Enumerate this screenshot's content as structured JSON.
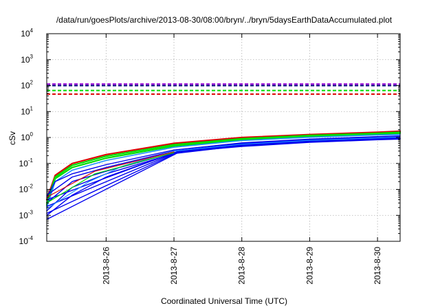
{
  "chart_data": {
    "type": "line",
    "title": "/data/run/goesPlots/archive/2013-08-30/08:00/bryn/../bryn/5daysEarthDataAccumulated.plot",
    "xlabel": "Coordinated Universal Time (UTC)",
    "ylabel": "cSv",
    "yscale": "log",
    "ylim": [
      0.0001,
      10000
    ],
    "xlim": [
      "2013-08-25 03:00",
      "2013-08-30 08:00"
    ],
    "x_ticks": [
      "2013-8-26",
      "2013-8-27",
      "2013-8-28",
      "2013-8-29",
      "2013-8-30"
    ],
    "y_ticks": [
      {
        "value": 0.0001,
        "base": "10",
        "exp": "-4"
      },
      {
        "value": 0.001,
        "base": "10",
        "exp": "-3"
      },
      {
        "value": 0.01,
        "base": "10",
        "exp": "-2"
      },
      {
        "value": 0.1,
        "base": "10",
        "exp": "-1"
      },
      {
        "value": 1,
        "base": "10",
        "exp": "0"
      },
      {
        "value": 10,
        "base": "10",
        "exp": "1"
      },
      {
        "value": 100,
        "base": "10",
        "exp": "2"
      },
      {
        "value": 1000,
        "base": "10",
        "exp": "3"
      },
      {
        "value": 10000,
        "base": "10",
        "exp": "4"
      }
    ],
    "grid": true,
    "colors": {
      "red": "#dd0000",
      "green": "#00dd00",
      "blue": "#0000ee",
      "lightblue": "#1e90ff",
      "purple": "#9400d3",
      "navy": "#00007a"
    },
    "threshold_lines": [
      {
        "y": 115,
        "color": "#9400d3"
      },
      {
        "y": 100,
        "color": "#00007a"
      },
      {
        "y": 65,
        "color": "#00dd00"
      },
      {
        "y": 47,
        "color": "#dd0000"
      }
    ],
    "series": [
      {
        "color": "#dd0000",
        "width": 2.2,
        "points": [
          [
            "2013-08-25 03:00",
            0.004
          ],
          [
            "2013-08-25 06:00",
            0.035
          ],
          [
            "2013-08-25 12:00",
            0.1
          ],
          [
            "2013-08-26 00:00",
            0.22
          ],
          [
            "2013-08-27 00:00",
            0.6
          ],
          [
            "2013-08-28 00:00",
            1.0
          ],
          [
            "2013-08-29 00:00",
            1.3
          ],
          [
            "2013-08-30 00:00",
            1.6
          ],
          [
            "2013-08-30 08:00",
            1.75
          ]
        ]
      },
      {
        "color": "#00dd00",
        "width": 2.2,
        "points": [
          [
            "2013-08-25 03:00",
            0.003
          ],
          [
            "2013-08-25 06:00",
            0.03
          ],
          [
            "2013-08-25 12:00",
            0.085
          ],
          [
            "2013-08-26 00:00",
            0.19
          ],
          [
            "2013-08-27 00:00",
            0.53
          ],
          [
            "2013-08-28 00:00",
            0.9
          ],
          [
            "2013-08-29 00:00",
            1.2
          ],
          [
            "2013-08-30 00:00",
            1.45
          ],
          [
            "2013-08-30 08:00",
            1.6
          ]
        ]
      },
      {
        "color": "#00dd00",
        "width": 2.2,
        "points": [
          [
            "2013-08-25 03:00",
            0.0025
          ],
          [
            "2013-08-25 06:00",
            0.026
          ],
          [
            "2013-08-25 12:00",
            0.07
          ],
          [
            "2013-08-26 00:00",
            0.16
          ],
          [
            "2013-08-27 00:00",
            0.47
          ],
          [
            "2013-08-28 00:00",
            0.82
          ],
          [
            "2013-08-29 00:00",
            1.1
          ],
          [
            "2013-08-30 00:00",
            1.35
          ],
          [
            "2013-08-30 08:00",
            1.45
          ]
        ]
      },
      {
        "color": "#1e90ff",
        "width": 1.6,
        "points": [
          [
            "2013-08-25 03:00",
            0.002
          ],
          [
            "2013-08-25 06:00",
            0.02
          ],
          [
            "2013-08-25 12:00",
            0.055
          ],
          [
            "2013-08-26 00:00",
            0.13
          ],
          [
            "2013-08-27 00:00",
            0.42
          ],
          [
            "2013-08-28 00:00",
            0.76
          ],
          [
            "2013-08-29 00:00",
            1.02
          ],
          [
            "2013-08-30 00:00",
            1.25
          ],
          [
            "2013-08-30 08:00",
            1.3
          ]
        ]
      },
      {
        "color": "#0000ee",
        "width": 1.4,
        "points": [
          [
            "2013-08-25 03:00",
            0.005
          ],
          [
            "2013-08-25 06:00",
            0.02
          ],
          [
            "2013-08-25 12:00",
            0.04
          ],
          [
            "2013-08-26 00:00",
            0.09
          ],
          [
            "2013-08-27 00:00",
            0.33
          ],
          [
            "2013-08-28 00:00",
            0.62
          ],
          [
            "2013-08-29 00:00",
            0.87
          ],
          [
            "2013-08-30 00:00",
            1.08
          ],
          [
            "2013-08-30 08:00",
            1.15
          ]
        ]
      },
      {
        "color": "#0000ee",
        "width": 1.4,
        "points": [
          [
            "2013-08-25 03:00",
            0.006
          ],
          [
            "2013-08-25 12:00",
            0.03
          ],
          [
            "2013-08-26 00:00",
            0.07
          ],
          [
            "2013-08-27 00:00",
            0.3
          ],
          [
            "2013-08-28 00:00",
            0.58
          ],
          [
            "2013-08-29 00:00",
            0.82
          ],
          [
            "2013-08-30 00:00",
            1.0
          ],
          [
            "2013-08-30 08:00",
            1.05
          ]
        ]
      },
      {
        "color": "#0000ee",
        "width": 1.4,
        "points": [
          [
            "2013-08-25 03:00",
            0.003
          ],
          [
            "2013-08-25 12:00",
            0.02
          ],
          [
            "2013-08-26 00:00",
            0.05
          ],
          [
            "2013-08-27 00:00",
            0.26
          ],
          [
            "2013-08-28 00:00",
            0.52
          ],
          [
            "2013-08-29 00:00",
            0.76
          ],
          [
            "2013-08-30 00:00",
            0.95
          ],
          [
            "2013-08-30 08:00",
            0.98
          ]
        ]
      },
      {
        "color": "#0000ee",
        "width": 1.4,
        "points": [
          [
            "2013-08-25 03:00",
            0.0015
          ],
          [
            "2013-08-25 12:00",
            0.012
          ],
          [
            "2013-08-26 00:00",
            0.04
          ],
          [
            "2013-08-27 00:00",
            0.24
          ],
          [
            "2013-08-28 00:00",
            0.48
          ],
          [
            "2013-08-29 00:00",
            0.7
          ],
          [
            "2013-08-30 00:00",
            0.88
          ],
          [
            "2013-08-30 08:00",
            0.92
          ]
        ]
      },
      {
        "color": "#0000ee",
        "width": 1.4,
        "points": [
          [
            "2013-08-25 03:00",
            0.001
          ],
          [
            "2013-08-25 12:00",
            0.006
          ],
          [
            "2013-08-26 00:00",
            0.03
          ],
          [
            "2013-08-27 02:00",
            0.3
          ],
          [
            "2013-08-28 00:00",
            0.48
          ],
          [
            "2013-08-29 00:00",
            0.68
          ],
          [
            "2013-08-30 00:00",
            0.85
          ],
          [
            "2013-08-30 08:00",
            0.9
          ]
        ]
      },
      {
        "color": "#0000ee",
        "width": 1.4,
        "points": [
          [
            "2013-08-25 03:00",
            0.0007
          ],
          [
            "2013-08-27 02:00",
            0.28
          ],
          [
            "2013-08-28 00:00",
            0.45
          ],
          [
            "2013-08-29 00:00",
            0.65
          ],
          [
            "2013-08-30 00:00",
            0.82
          ],
          [
            "2013-08-30 08:00",
            0.87
          ]
        ]
      },
      {
        "color": "#0000ee",
        "width": 1.4,
        "points": [
          [
            "2013-08-25 03:00",
            0.0012
          ],
          [
            "2013-08-27 02:00",
            0.29
          ],
          [
            "2013-08-28 00:00",
            0.47
          ],
          [
            "2013-08-29 00:00",
            0.67
          ],
          [
            "2013-08-30 00:00",
            0.84
          ],
          [
            "2013-08-30 08:00",
            0.88
          ]
        ]
      },
      {
        "color": "#0000ee",
        "width": 1.4,
        "points": [
          [
            "2013-08-25 03:00",
            0.0022
          ],
          [
            "2013-08-27 02:00",
            0.3
          ],
          [
            "2013-08-28 00:00",
            0.49
          ],
          [
            "2013-08-29 00:00",
            0.69
          ],
          [
            "2013-08-30 00:00",
            0.86
          ],
          [
            "2013-08-30 08:00",
            0.9
          ]
        ]
      },
      {
        "color": "#0000ee",
        "width": 1.4,
        "points": [
          [
            "2013-08-25 03:00",
            0.004
          ],
          [
            "2013-08-27 02:00",
            0.31
          ],
          [
            "2013-08-28 00:00",
            0.5
          ],
          [
            "2013-08-29 00:00",
            0.7
          ],
          [
            "2013-08-30 00:00",
            0.87
          ],
          [
            "2013-08-30 08:00",
            0.92
          ]
        ]
      },
      {
        "color": "#1e90ff",
        "width": 1.2,
        "points": [
          [
            "2013-08-25 03:00",
            0.0018
          ],
          [
            "2013-08-25 18:00",
            0.02
          ],
          [
            "2013-08-26 06:00",
            0.08
          ],
          [
            "2013-08-27 00:00",
            0.3
          ],
          [
            "2013-08-28 00:00",
            0.55
          ],
          [
            "2013-08-29 00:00",
            0.78
          ],
          [
            "2013-08-30 00:00",
            0.97
          ],
          [
            "2013-08-30 08:00",
            1.02
          ]
        ]
      },
      {
        "color": "#dd0000",
        "width": 1.2,
        "points": [
          [
            "2013-08-25 03:00",
            0.005
          ],
          [
            "2013-08-25 20:00",
            0.05
          ],
          [
            "2013-08-27 00:00",
            0.28
          ]
        ]
      },
      {
        "color": "#00dd00",
        "width": 1.2,
        "points": [
          [
            "2013-08-25 03:00",
            0.003
          ],
          [
            "2013-08-25 20:00",
            0.04
          ],
          [
            "2013-08-27 00:00",
            0.26
          ]
        ]
      }
    ]
  }
}
